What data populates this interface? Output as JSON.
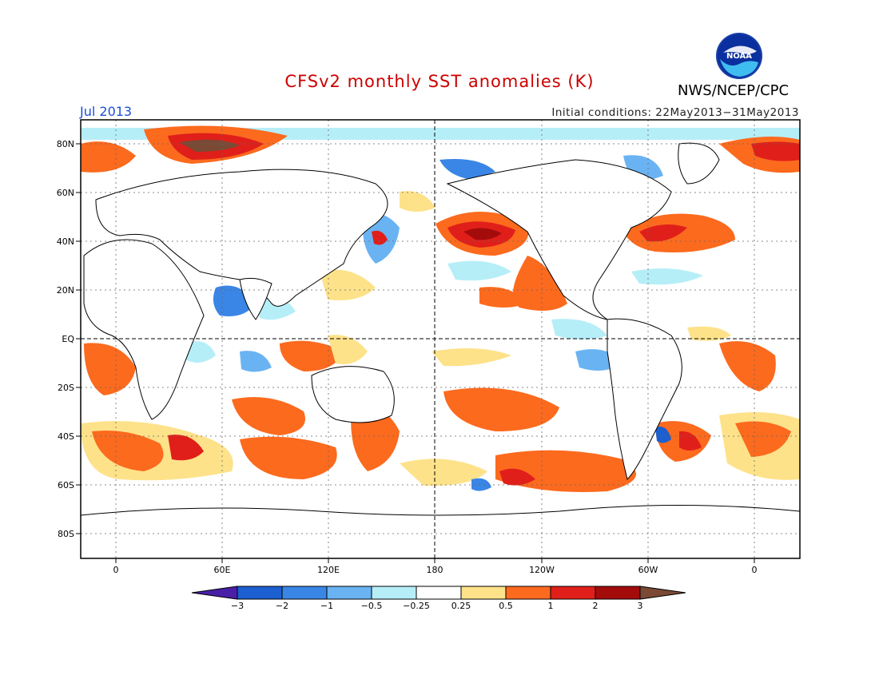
{
  "title": "CFSv2 monthly SST anomalies (K)",
  "month": "Jul 2013",
  "initial_conditions": "Initial conditions: 22May2013−31May2013",
  "agency": "NWS/NCEP/CPC",
  "logo_text": "NOAA",
  "lat_labels": [
    "80N",
    "60N",
    "40N",
    "20N",
    "EQ",
    "20S",
    "40S",
    "60S",
    "80S"
  ],
  "lon_labels": [
    "0",
    "60E",
    "120E",
    "180",
    "120W",
    "60W",
    "0"
  ],
  "colorbar": {
    "labels": [
      "−3",
      "−2",
      "−1",
      "−0.5",
      "−0.25",
      "0.25",
      "0.5",
      "1",
      "2",
      "3"
    ],
    "colors": [
      "#4a1fa8",
      "#1c5fd0",
      "#3a86e6",
      "#6ab3f2",
      "#b6eef8",
      "#ffffff",
      "#fde28a",
      "#fc6a1e",
      "#e01f1a",
      "#a40c0c",
      "#7a4a35"
    ]
  },
  "colors": {
    "title": "#cc0000",
    "month": "#1a4fd6"
  }
}
